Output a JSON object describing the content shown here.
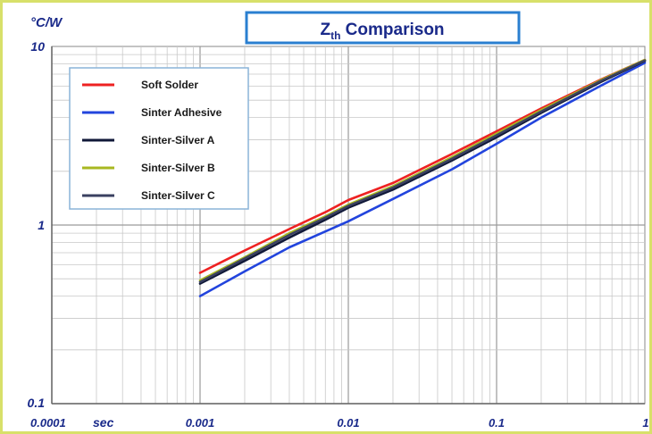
{
  "chart_data": {
    "type": "line",
    "title_main": "Z",
    "title_sub": "th",
    "title_rest": " Comparison",
    "ylabel": "°C/W",
    "xlabel": "sec",
    "xscale": "log",
    "yscale": "log",
    "xlim": [
      0.0001,
      1
    ],
    "ylim": [
      0.1,
      10
    ],
    "grid": true,
    "legend_position": "top-left",
    "x_tick_labels": [
      "0.0001",
      "0.001",
      "0.01",
      "0.1",
      "1"
    ],
    "y_tick_labels": [
      "0.1",
      "1",
      "10"
    ],
    "x_ticks": [
      0.0001,
      0.001,
      0.01,
      0.1,
      1
    ],
    "y_ticks": [
      0.1,
      1,
      10
    ],
    "series": [
      {
        "name": "Soft Solder",
        "color": "#ee2222",
        "x": [
          0.001,
          0.002,
          0.004,
          0.007,
          0.01,
          0.02,
          0.05,
          0.1,
          0.2,
          0.5,
          1
        ],
        "y": [
          0.54,
          0.72,
          0.95,
          1.18,
          1.38,
          1.72,
          2.5,
          3.35,
          4.5,
          6.5,
          8.4
        ]
      },
      {
        "name": "Sinter Adhesive",
        "color": "#2244dd",
        "x": [
          0.001,
          0.002,
          0.004,
          0.007,
          0.01,
          0.02,
          0.05,
          0.1,
          0.2,
          0.5,
          1
        ],
        "y": [
          0.4,
          0.55,
          0.75,
          0.92,
          1.05,
          1.4,
          2.05,
          2.85,
          4.0,
          6.0,
          8.1
        ]
      },
      {
        "name": "Sinter-Silver A",
        "color": "#101838",
        "x": [
          0.001,
          0.002,
          0.004,
          0.007,
          0.01,
          0.02,
          0.05,
          0.1,
          0.2,
          0.5,
          1
        ],
        "y": [
          0.47,
          0.63,
          0.85,
          1.07,
          1.25,
          1.58,
          2.3,
          3.1,
          4.25,
          6.3,
          8.3
        ]
      },
      {
        "name": "Sinter-Silver B",
        "color": "#a8b820",
        "x": [
          0.001,
          0.002,
          0.004,
          0.007,
          0.01,
          0.02,
          0.05,
          0.1,
          0.2,
          0.5,
          1
        ],
        "y": [
          0.49,
          0.66,
          0.9,
          1.12,
          1.3,
          1.65,
          2.4,
          3.25,
          4.4,
          6.45,
          8.4
        ]
      },
      {
        "name": "Sinter-Silver C",
        "color": "#3a4060",
        "x": [
          0.001,
          0.002,
          0.004,
          0.007,
          0.01,
          0.02,
          0.05,
          0.1,
          0.2,
          0.5,
          1
        ],
        "y": [
          0.48,
          0.65,
          0.88,
          1.1,
          1.28,
          1.62,
          2.35,
          3.18,
          4.32,
          6.38,
          8.35
        ]
      }
    ]
  }
}
